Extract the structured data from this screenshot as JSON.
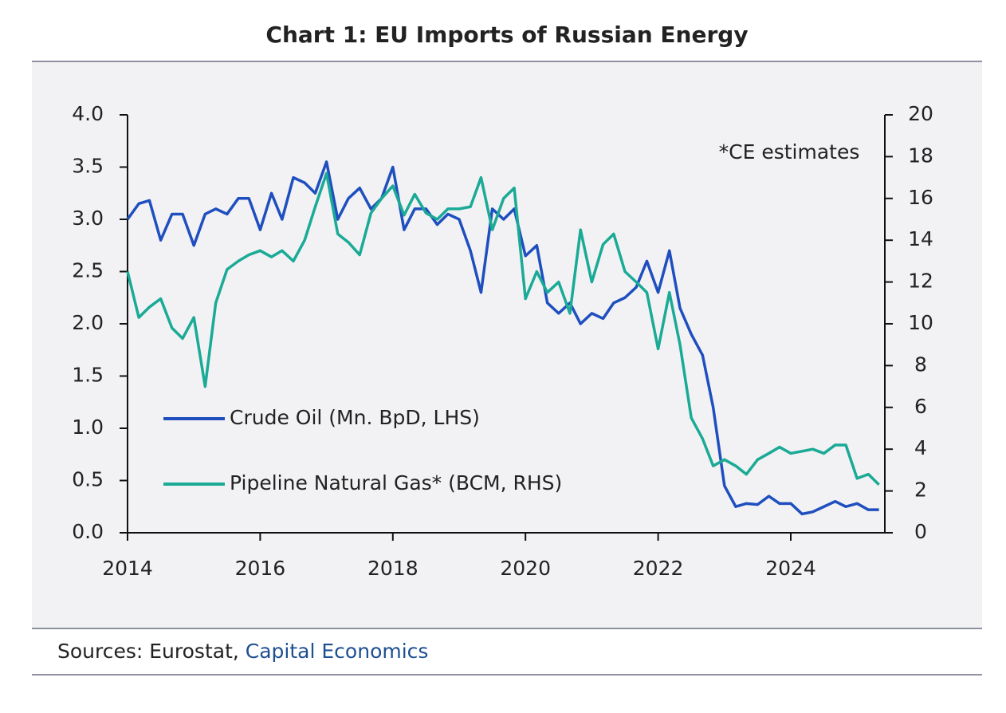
{
  "chart_data": {
    "type": "line",
    "title": "Chart 1: EU Imports of Russian Energy",
    "annotation": "*CE estimates",
    "source_prefix": "Sources: Eurostat,",
    "source_link": "Capital Economics",
    "x": [
      2014.0,
      2014.17,
      2014.33,
      2014.5,
      2014.67,
      2014.83,
      2015.0,
      2015.17,
      2015.33,
      2015.5,
      2015.67,
      2015.83,
      2016.0,
      2016.17,
      2016.33,
      2016.5,
      2016.67,
      2016.83,
      2017.0,
      2017.17,
      2017.33,
      2017.5,
      2017.67,
      2017.83,
      2018.0,
      2018.17,
      2018.33,
      2018.5,
      2018.67,
      2018.83,
      2019.0,
      2019.17,
      2019.33,
      2019.5,
      2019.67,
      2019.83,
      2020.0,
      2020.17,
      2020.33,
      2020.5,
      2020.67,
      2020.83,
      2021.0,
      2021.17,
      2021.33,
      2021.5,
      2021.67,
      2021.83,
      2022.0,
      2022.17,
      2022.33,
      2022.5,
      2022.67,
      2022.83,
      2023.0,
      2023.17,
      2023.33,
      2023.5,
      2023.67,
      2023.83,
      2024.0,
      2024.17,
      2024.33,
      2024.5,
      2024.67,
      2024.83,
      2025.0,
      2025.17,
      2025.33
    ],
    "series": [
      {
        "name": "Crude Oil (Mn. BpD, LHS)",
        "color": "#1f4fbf",
        "values": [
          3.0,
          3.15,
          3.18,
          2.8,
          3.05,
          3.05,
          2.75,
          3.05,
          3.1,
          3.05,
          3.2,
          3.2,
          2.9,
          3.25,
          3.0,
          3.4,
          3.35,
          3.25,
          3.55,
          3.0,
          3.2,
          3.3,
          3.1,
          3.2,
          3.5,
          2.9,
          3.1,
          3.1,
          2.95,
          3.05,
          3.0,
          2.7,
          2.3,
          3.1,
          3.0,
          3.1,
          2.65,
          2.75,
          2.2,
          2.1,
          2.2,
          2.0,
          2.1,
          2.05,
          2.2,
          2.25,
          2.35,
          2.6,
          2.3,
          2.7,
          2.15,
          1.9,
          1.7,
          1.2,
          0.45,
          0.25,
          0.28,
          0.27,
          0.35,
          0.28,
          0.28,
          0.18,
          0.2,
          0.25,
          0.3,
          0.25,
          0.28,
          0.22,
          0.22
        ]
      },
      {
        "name": "Pipeline Natural Gas* (BCM, RHS)",
        "color": "#1aaa96",
        "axis": "y2",
        "values": [
          12.5,
          10.3,
          10.8,
          11.2,
          9.8,
          9.3,
          10.3,
          7.0,
          11.0,
          12.6,
          13.0,
          13.3,
          13.5,
          13.2,
          13.5,
          13.0,
          14.0,
          15.6,
          17.2,
          14.3,
          13.9,
          13.3,
          15.3,
          16.0,
          16.6,
          15.2,
          16.2,
          15.3,
          15.0,
          15.5,
          15.5,
          15.6,
          17.0,
          14.5,
          16.0,
          16.5,
          11.2,
          12.5,
          11.5,
          12.0,
          10.5,
          14.5,
          12.0,
          13.8,
          14.3,
          12.5,
          12.0,
          11.5,
          8.8,
          11.5,
          9.0,
          5.5,
          4.5,
          3.2,
          3.5,
          3.2,
          2.8,
          3.5,
          3.8,
          4.1,
          3.8,
          3.9,
          4.0,
          3.8,
          4.2,
          4.2,
          2.6,
          2.8,
          2.3
        ]
      }
    ],
    "xlim": [
      2014,
      2025.5
    ],
    "xticks": [
      2014,
      2016,
      2018,
      2020,
      2022,
      2024
    ],
    "ylim": [
      0,
      4
    ],
    "yticks": [
      {
        "value": 0,
        "label": "0.0"
      },
      {
        "value": 0.5,
        "label": "0.5"
      },
      {
        "value": 1,
        "label": "1.0"
      },
      {
        "value": 1.5,
        "label": "1.5"
      },
      {
        "value": 2,
        "label": "2.0"
      },
      {
        "value": 2.5,
        "label": "2.5"
      },
      {
        "value": 3,
        "label": "3.0"
      },
      {
        "value": 3.5,
        "label": "3.5"
      },
      {
        "value": 4,
        "label": "4.0"
      }
    ],
    "y2lim": [
      0,
      20
    ],
    "y2ticks": [
      0,
      2,
      4,
      6,
      8,
      10,
      12,
      14,
      16,
      18,
      20
    ]
  }
}
